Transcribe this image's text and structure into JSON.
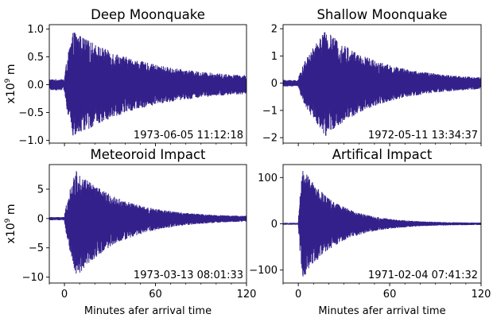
{
  "figure": {
    "xlabel": "Minutes afer arrival time",
    "ylabel_prefix": "x10",
    "ylabel_exp": "9",
    "ylabel_suffix": " m",
    "trace_color": "#33208a"
  },
  "chart_data": [
    {
      "type": "line",
      "title": "Deep Moonquake",
      "timestamp": "1973-06-05 11:12:18",
      "xlim": [
        -10,
        120
      ],
      "ylim": [
        -1.05,
        1.08
      ],
      "xticks": [
        0,
        60,
        120
      ],
      "yticks": [
        -1.0,
        -0.5,
        0.0,
        0.5,
        1.0
      ],
      "ytick_labels": [
        "−1.0",
        "−0.5",
        "0.0",
        "0.5",
        "1.0"
      ],
      "show_xlabels": false,
      "show_ylabel": true,
      "envelope": {
        "onset": 0,
        "peak_time": 6,
        "peak_amplitude": 0.97,
        "decay_tau": 45,
        "noise_amplitude": 0.1,
        "asymmetry": 1.0
      }
    },
    {
      "type": "line",
      "title": "Shallow Moonquake",
      "timestamp": "1972-05-11 13:34:37",
      "xlim": [
        -10,
        120
      ],
      "ylim": [
        -2.2,
        2.15
      ],
      "xticks": [
        0,
        60,
        120
      ],
      "yticks": [
        -2,
        -1,
        0,
        1,
        2
      ],
      "ytick_labels": [
        "−2",
        "−1",
        "0",
        "1",
        "2"
      ],
      "show_xlabels": false,
      "show_ylabel": false,
      "envelope": {
        "onset": 0,
        "peak_time": 18,
        "peak_amplitude": 1.95,
        "decay_tau": 35,
        "noise_amplitude": 0.12,
        "asymmetry": 1.0
      }
    },
    {
      "type": "line",
      "title": "Meteoroid Impact",
      "timestamp": "1973-03-13 08:01:33",
      "xlim": [
        -10,
        120
      ],
      "ylim": [
        -11,
        9.2
      ],
      "xticks": [
        0,
        60,
        120
      ],
      "yticks": [
        -10,
        -5,
        0,
        5
      ],
      "ytick_labels": [
        "−10",
        "−5",
        "0",
        "5"
      ],
      "show_xlabels": true,
      "show_ylabel": true,
      "envelope": {
        "onset": 0,
        "peak_time": 8,
        "peak_amplitude": 8.3,
        "decay_tau": 30,
        "noise_amplitude": 0.25,
        "asymmetry": 1.2
      }
    },
    {
      "type": "line",
      "title": "Artifical Impact",
      "timestamp": "1971-02-04 07:41:32",
      "xlim": [
        -10,
        120
      ],
      "ylim": [
        -128,
        128
      ],
      "xticks": [
        0,
        60,
        120
      ],
      "yticks": [
        -100,
        0,
        100
      ],
      "ytick_labels": [
        "−100",
        "0",
        "100"
      ],
      "show_xlabels": true,
      "show_ylabel": false,
      "envelope": {
        "onset": 0,
        "peak_time": 3,
        "peak_amplitude": 120,
        "decay_tau": 22,
        "noise_amplitude": 2,
        "asymmetry": 1.0
      }
    }
  ]
}
